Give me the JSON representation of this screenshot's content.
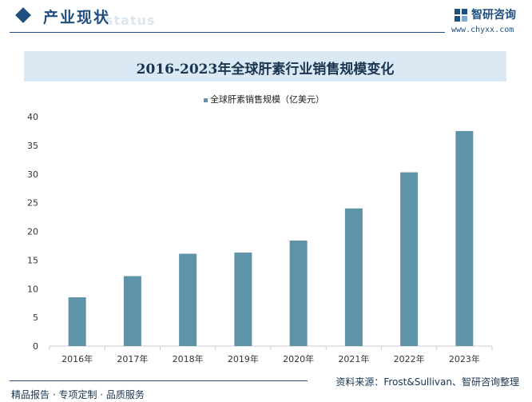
{
  "header": {
    "section_title": "产业现状",
    "ghost_text": "status",
    "brand_name": "智研咨询",
    "brand_url": "www.chyxx.com"
  },
  "chart_data": {
    "type": "bar",
    "title": "2016-2023年全球肝素行业销售规模变化",
    "categories": [
      "2016年",
      "2017年",
      "2018年",
      "2019年",
      "2020年",
      "2021年",
      "2022年",
      "2023年"
    ],
    "series": [
      {
        "name": "全球肝素销售规模（亿美元）",
        "values": [
          8.5,
          12.2,
          16.1,
          16.3,
          18.4,
          24.0,
          30.3,
          37.5
        ]
      }
    ],
    "ylim": [
      0,
      40
    ],
    "yticks": [
      0,
      5,
      10,
      15,
      20,
      25,
      30,
      35,
      40
    ],
    "grid": false,
    "legend": "top-center",
    "colors": {
      "bar": "#5f93a9",
      "axis": "#cccccc",
      "text": "#333333"
    }
  },
  "footer": {
    "source": "资料来源：Frost&Sullivan、智研咨询整理",
    "slogan": "精品报告 · 专项定制 · 品质服务"
  }
}
